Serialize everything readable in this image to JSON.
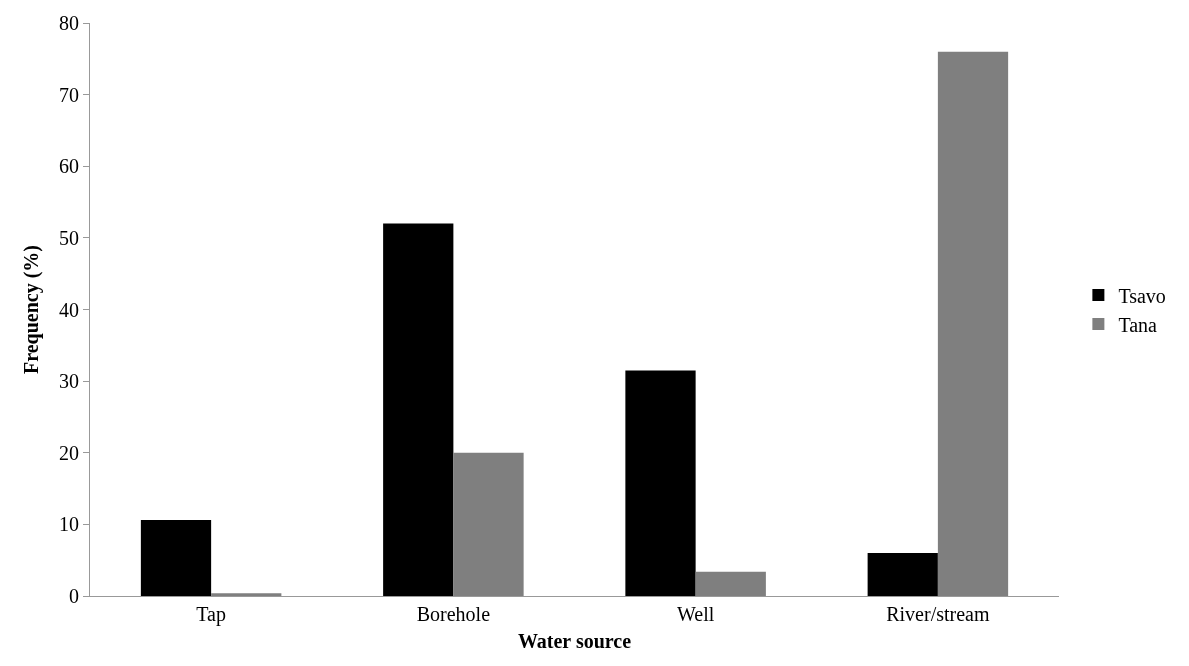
{
  "chart_data": {
    "type": "bar",
    "xlabel": "Water source",
    "ylabel": "Frequency (%)",
    "categories": [
      "Tap",
      "Borehole",
      "Well",
      "River/stream"
    ],
    "series": [
      {
        "name": "Tsavo",
        "color": "#000000",
        "values": [
          10.6,
          52,
          31.5,
          6
        ]
      },
      {
        "name": "Tana",
        "color": "#7f7f7f",
        "values": [
          0.4,
          20,
          3.4,
          76
        ]
      }
    ],
    "ylim": [
      0,
      80
    ],
    "yticks": [
      0,
      10,
      20,
      30,
      40,
      50,
      60,
      70,
      80
    ],
    "legend": "right"
  }
}
